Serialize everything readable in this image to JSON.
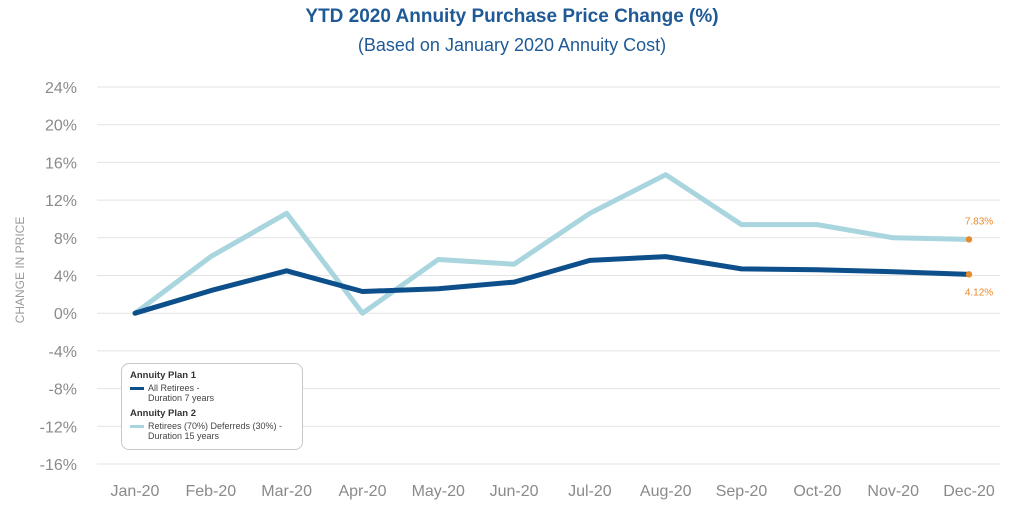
{
  "chart_data": {
    "type": "line",
    "title": "YTD 2020 Annuity Purchase Price Change (%)",
    "subtitle": "(Based on January 2020 Annuity Cost)",
    "ylabel": "CHANGE IN PRICE",
    "xlabel": "",
    "categories": [
      "Jan-20",
      "Feb-20",
      "Mar-20",
      "Apr-20",
      "May-20",
      "Jun-20",
      "Jul-20",
      "Aug-20",
      "Sep-20",
      "Oct-20",
      "Nov-20",
      "Dec-20"
    ],
    "yticks": [
      "24%",
      "20%",
      "16%",
      "12%",
      "8%",
      "4%",
      "0%",
      "-4%",
      "-8%",
      "-12%",
      "-16%"
    ],
    "ylim": [
      -16,
      24
    ],
    "grid": true,
    "series": [
      {
        "name": "Annuity Plan 1",
        "label": "All Retirees -\nDuration 7 years",
        "color": "#0d4f8b",
        "values": [
          0.0,
          2.4,
          4.5,
          2.3,
          2.6,
          3.3,
          5.6,
          6.0,
          4.7,
          4.6,
          4.4,
          4.12
        ],
        "end_label": "4.12%"
      },
      {
        "name": "Annuity Plan 2",
        "label": "Retirees (70%) Deferreds (30%) -\nDuration 15 years",
        "color": "#a8d5de",
        "values": [
          0.0,
          6.0,
          10.6,
          0.0,
          5.7,
          5.2,
          10.6,
          14.7,
          9.4,
          9.4,
          8.0,
          7.83
        ],
        "end_label": "7.83%"
      }
    ],
    "end_marker_color": "#e8892a",
    "legend_position": "bottom-left"
  }
}
